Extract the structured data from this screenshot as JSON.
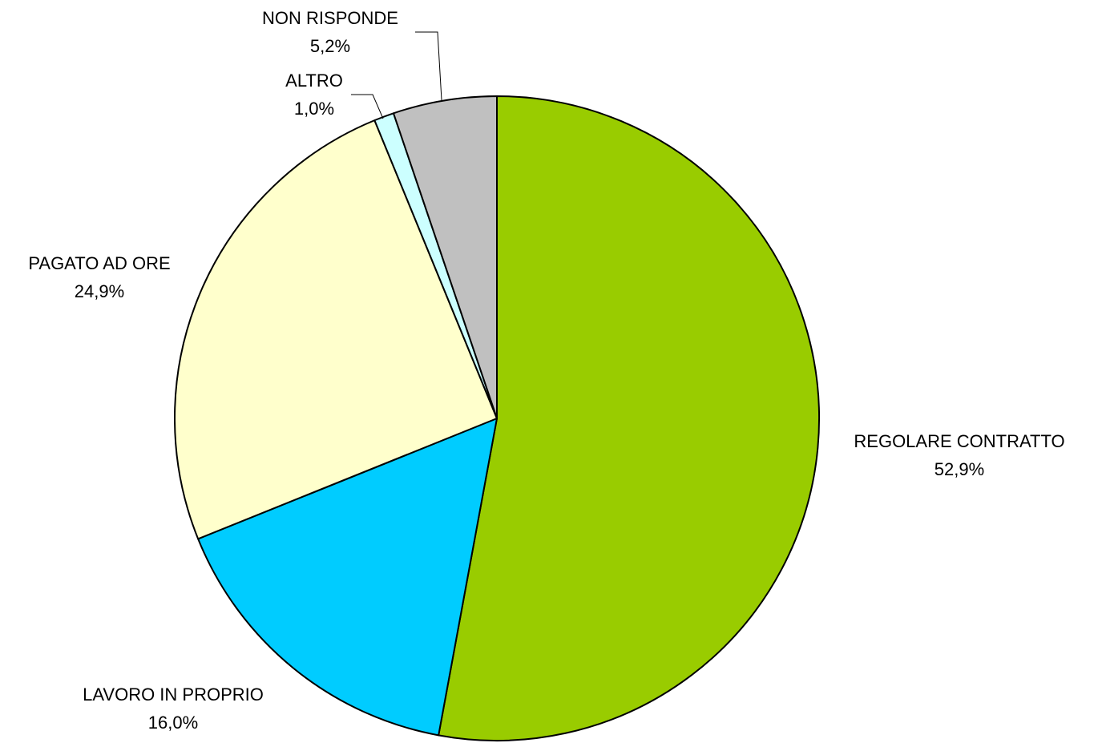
{
  "chart_data": {
    "type": "pie",
    "title": "",
    "start_angle_deg": 0,
    "direction": "clockwise",
    "slices": [
      {
        "key": "regolare-contratto",
        "label": "REGOLARE CONTRATTO",
        "value": 52.9,
        "value_label": "52,9%",
        "color": "#99CC00"
      },
      {
        "key": "lavoro-in-proprio",
        "label": "LAVORO IN PROPRIO",
        "value": 16.0,
        "value_label": "16,0%",
        "color": "#00CCFF"
      },
      {
        "key": "pagato-ad-ore",
        "label": "PAGATO AD ORE",
        "value": 24.9,
        "value_label": "24,9%",
        "color": "#FFFFCC"
      },
      {
        "key": "altro",
        "label": "ALTRO",
        "value": 1.0,
        "value_label": "1,0%",
        "color": "#CCFFFF"
      },
      {
        "key": "non-risponde",
        "label": "NON RISPONDE",
        "value": 5.2,
        "value_label": "5,2%",
        "color": "#C0C0C0"
      }
    ]
  }
}
